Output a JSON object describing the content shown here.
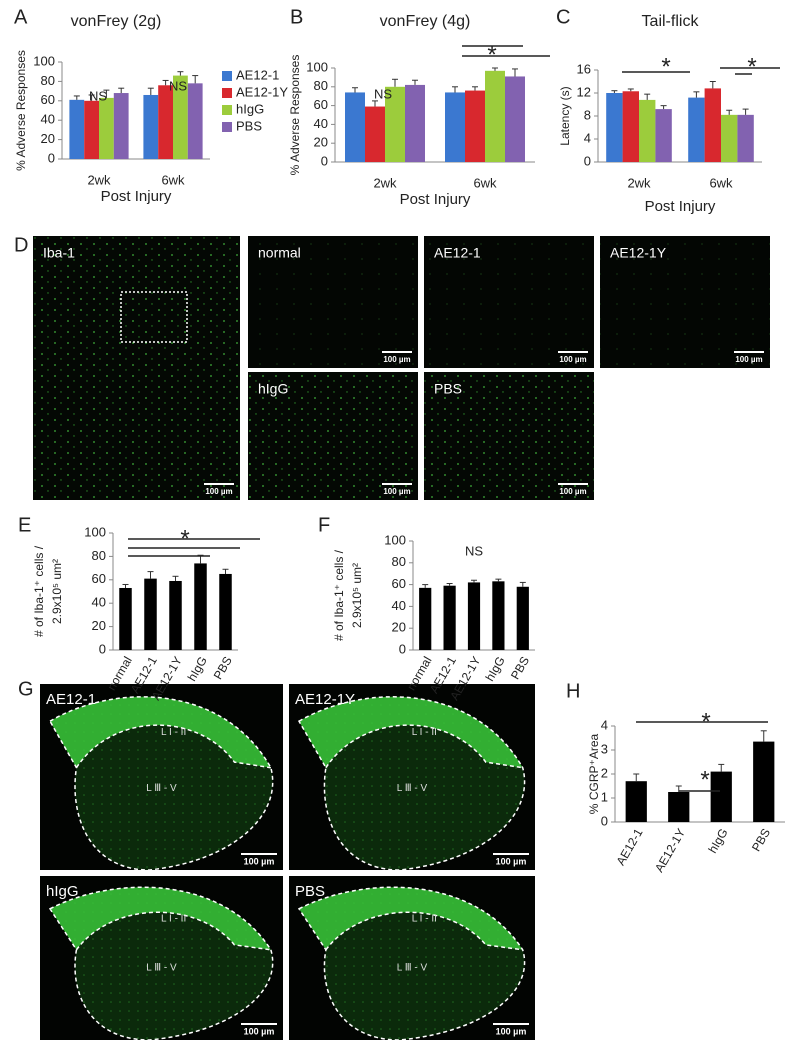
{
  "panels": [
    "A",
    "B",
    "C",
    "D",
    "E",
    "F",
    "G",
    "H"
  ],
  "chart_data": [
    {
      "type": "bar",
      "title": "vonFrey (2g)",
      "ylabel": [
        "% Adverse Responses"
      ],
      "xlabel": "Post Injury",
      "categories": [
        "2wk",
        "6wk"
      ],
      "ylim": [
        0,
        100
      ],
      "yticks": [
        0,
        20,
        40,
        60,
        80,
        100
      ],
      "legend": true,
      "series": [
        {
          "name": "AE12-1",
          "color": "#3b78d0",
          "values": [
            61,
            66
          ],
          "errors": [
            4,
            7
          ]
        },
        {
          "name": "AE12-1Y",
          "color": "#d8282e",
          "values": [
            60,
            76
          ],
          "errors": [
            6,
            5
          ]
        },
        {
          "name": "hIgG",
          "color": "#9ccc3c",
          "values": [
            63,
            86
          ],
          "errors": [
            8,
            4
          ]
        },
        {
          "name": "PBS",
          "color": "#8262b0",
          "values": [
            68,
            78
          ],
          "errors": [
            5,
            8
          ]
        }
      ],
      "annotations": [
        "NS",
        "NS"
      ]
    },
    {
      "type": "bar",
      "title": "vonFrey (4g)",
      "ylabel": [
        "% Adverse Responses"
      ],
      "xlabel": "Post Injury",
      "categories": [
        "2wk",
        "6wk"
      ],
      "ylim": [
        0,
        100
      ],
      "yticks": [
        0,
        20,
        40,
        60,
        80,
        100
      ],
      "legend": false,
      "series": [
        {
          "color": "#3b78d0",
          "values": [
            74,
            74
          ],
          "errors": [
            5,
            6
          ]
        },
        {
          "color": "#d8282e",
          "values": [
            59,
            76
          ],
          "errors": [
            6,
            4
          ]
        },
        {
          "color": "#9ccc3c",
          "values": [
            80,
            97
          ],
          "errors": [
            8,
            3
          ]
        },
        {
          "color": "#8262b0",
          "values": [
            82,
            91
          ],
          "errors": [
            5,
            8
          ]
        }
      ],
      "annotations": [
        "NS",
        "*"
      ]
    },
    {
      "type": "bar",
      "title": "Tail-flick",
      "ylabel": [
        "Latency (s)"
      ],
      "xlabel": "Post Injury",
      "categories": [
        "2wk",
        "6wk"
      ],
      "ylim": [
        0,
        16
      ],
      "yticks": [
        0,
        4,
        8,
        12,
        16
      ],
      "legend": false,
      "series": [
        {
          "color": "#3b78d0",
          "values": [
            12,
            11.2
          ],
          "errors": [
            0.4,
            1
          ]
        },
        {
          "color": "#d8282e",
          "values": [
            12.3,
            12.8
          ],
          "errors": [
            0.4,
            1.2
          ]
        },
        {
          "color": "#9ccc3c",
          "values": [
            10.8,
            8.2
          ],
          "errors": [
            1,
            0.8
          ]
        },
        {
          "color": "#8262b0",
          "values": [
            9.2,
            8.2
          ],
          "errors": [
            0.6,
            1
          ]
        }
      ],
      "annotations": [
        "*",
        "*"
      ]
    },
    {
      "type": "bar",
      "ylabel": [
        "# of Iba-1⁺ cells /",
        "2.9x10⁵ um²"
      ],
      "categories": [
        "normal",
        "AE12-1",
        "AE12-1Y",
        "hIgG",
        "PBS"
      ],
      "ylim": [
        0,
        100
      ],
      "yticks": [
        0,
        20,
        40,
        60,
        80,
        100
      ],
      "legend": false,
      "series": [
        {
          "color": "#000000",
          "values": [
            53,
            61,
            59,
            74,
            65
          ],
          "errors": [
            3,
            6,
            4,
            7,
            4
          ]
        }
      ],
      "annotations": [
        "*"
      ]
    },
    {
      "type": "bar",
      "ylabel": [
        "# of Iba-1⁺ cells /",
        "2.9x10⁵ um²"
      ],
      "categories": [
        "normal",
        "AE12-1",
        "AE12-1Y",
        "hIgG",
        "PBS"
      ],
      "ylim": [
        0,
        100
      ],
      "yticks": [
        0,
        20,
        40,
        60,
        80,
        100
      ],
      "legend": false,
      "series": [
        {
          "color": "#000000",
          "values": [
            57,
            59,
            62,
            63,
            58
          ],
          "errors": [
            3,
            2,
            2,
            2,
            4
          ]
        }
      ],
      "annotations": [
        "NS"
      ]
    },
    {
      "type": "bar",
      "ylabel": [
        "% CGRP⁺Area"
      ],
      "categories": [
        "AE12-1",
        "AE12-1Y",
        "hIgG",
        "PBS"
      ],
      "ylim": [
        0,
        4
      ],
      "yticks": [
        0,
        1,
        2,
        3,
        4
      ],
      "legend": false,
      "series": [
        {
          "color": "#000000",
          "values": [
            1.7,
            1.25,
            2.1,
            3.35
          ],
          "errors": [
            0.3,
            0.25,
            0.3,
            0.45
          ]
        }
      ],
      "annotations": [
        "*",
        "*"
      ]
    }
  ],
  "micrographs": {
    "D": [
      {
        "label": "Iba-1",
        "scale_bar": "100 µm"
      },
      {
        "label": "normal",
        "scale_bar": "100 µm"
      },
      {
        "label": "AE12-1",
        "scale_bar": "100 µm"
      },
      {
        "label": "AE12-1Y",
        "scale_bar": "100 µm"
      },
      {
        "label": "hIgG",
        "scale_bar": "100 µm"
      },
      {
        "label": "PBS",
        "scale_bar": "100 µm"
      }
    ],
    "G": [
      {
        "label": "AE12-1",
        "scale_bar": "100 µm",
        "regions": [
          "L I - II",
          "L Ⅲ - V"
        ]
      },
      {
        "label": "AE12-1Y",
        "scale_bar": "100 µm",
        "regions": [
          "L I - II",
          "L Ⅲ - V"
        ]
      },
      {
        "label": "hIgG",
        "scale_bar": "100 µm",
        "regions": [
          "L I - II",
          "L Ⅲ - V"
        ]
      },
      {
        "label": "PBS",
        "scale_bar": "100 µm",
        "regions": [
          "L I - II",
          "L Ⅲ - V"
        ]
      }
    ]
  }
}
